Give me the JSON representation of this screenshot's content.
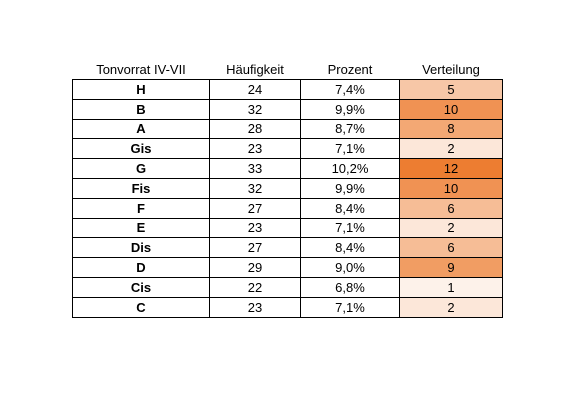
{
  "table": {
    "header": [
      "Tonvorrat IV-VII",
      "Häufigkeit",
      "Prozent",
      "Verteilung"
    ],
    "rows": [
      [
        "H",
        "24",
        "7,4%",
        "5"
      ],
      [
        "B",
        "32",
        "9,9%",
        "10"
      ],
      [
        "A",
        "28",
        "8,7%",
        "8"
      ],
      [
        "Gis",
        "23",
        "7,1%",
        "2"
      ],
      [
        "G",
        "33",
        "10,2%",
        "12"
      ],
      [
        "Fis",
        "32",
        "9,9%",
        "10"
      ],
      [
        "F",
        "27",
        "8,4%",
        "6"
      ],
      [
        "E",
        "23",
        "7,1%",
        "2"
      ],
      [
        "Dis",
        "27",
        "8,4%",
        "6"
      ],
      [
        "D",
        "29",
        "9,0%",
        "9"
      ],
      [
        "Cis",
        "22",
        "6,8%",
        "1"
      ],
      [
        "C",
        "23",
        "7,1%",
        "2"
      ]
    ]
  }
}
